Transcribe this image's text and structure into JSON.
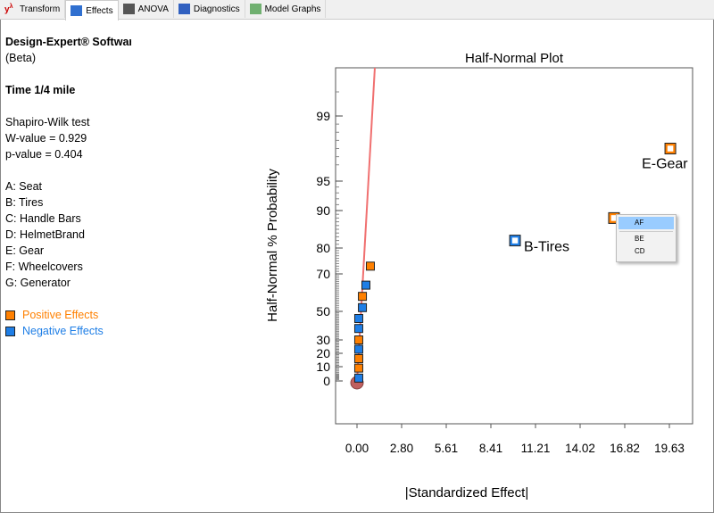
{
  "tabs": [
    {
      "label": "Transform",
      "icon": "y-lambda-icon"
    },
    {
      "label": "Effects",
      "icon": "effects-icon",
      "active": true
    },
    {
      "label": "ANOVA",
      "icon": "calculator-icon"
    },
    {
      "label": "Diagnostics",
      "icon": "diagnostics-icon"
    },
    {
      "label": "Model Graphs",
      "icon": "model-graphs-icon"
    }
  ],
  "info": {
    "software": "Design-Expert® Software",
    "beta": "(Beta)",
    "response": "Time 1/4 mile",
    "test": "Shapiro-Wilk test",
    "w": "W-value = 0.929",
    "p": "p-value = 0.404",
    "factors": [
      "A: Seat",
      "B: Tires",
      "C: Handle Bars",
      "D: HelmetBrand",
      "E: Gear",
      "F: Wheelcovers",
      "G: Generator"
    ],
    "positive": "Positive Effects",
    "negative": "Negative Effects"
  },
  "colors": {
    "positive": "#ff8000",
    "negative": "#1e7ee6",
    "line": "#f07070",
    "error": "#c06060"
  },
  "chart_data": {
    "type": "scatter",
    "title": "Half-Normal Plot",
    "xlabel": "|Standardized Effect|",
    "ylabel": "Half-Normal % Probability",
    "xlim": [
      0,
      19.63
    ],
    "xticks": [
      "0.00",
      "2.80",
      "5.61",
      "8.41",
      "11.21",
      "14.02",
      "16.82",
      "19.63"
    ],
    "yticks": [
      0,
      10,
      20,
      30,
      50,
      70,
      80,
      90,
      95,
      99
    ],
    "points": [
      {
        "x": 0.84,
        "y": 73,
        "sign": "positive"
      },
      {
        "x": 0.56,
        "y": 64,
        "sign": "negative"
      },
      {
        "x": 0.34,
        "y": 58,
        "sign": "positive"
      },
      {
        "x": 0.34,
        "y": 52,
        "sign": "negative"
      },
      {
        "x": 0.11,
        "y": 45,
        "sign": "negative"
      },
      {
        "x": 0.11,
        "y": 38,
        "sign": "negative"
      },
      {
        "x": 0.11,
        "y": 30,
        "sign": "positive"
      },
      {
        "x": 0.11,
        "y": 23,
        "sign": "negative"
      },
      {
        "x": 0.11,
        "y": 16,
        "sign": "positive"
      },
      {
        "x": 0.11,
        "y": 9,
        "sign": "positive"
      },
      {
        "x": 0.11,
        "y": 2,
        "sign": "negative"
      },
      {
        "x": 9.93,
        "y": 82,
        "sign": "negative",
        "label": "B-Tires",
        "selected": true
      },
      {
        "x": 16.15,
        "y": 88,
        "sign": "positive"
      },
      {
        "x": 19.69,
        "y": 97,
        "sign": "positive",
        "label": "E-Gear"
      }
    ],
    "error_point": {
      "x": 0,
      "y": -1
    },
    "fit_line": [
      [
        0,
        -1
      ],
      [
        1.12,
        100
      ]
    ]
  },
  "context_menu": [
    "AF",
    "BE",
    "CD"
  ]
}
